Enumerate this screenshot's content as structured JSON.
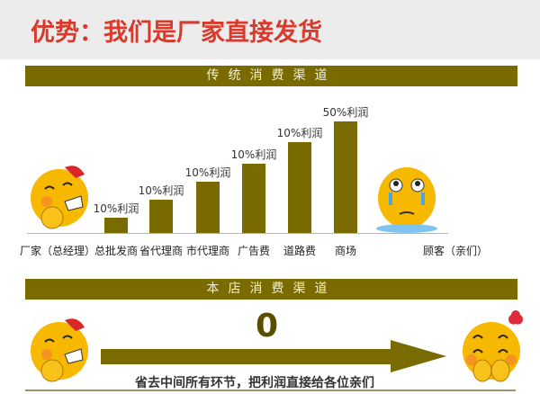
{
  "header": {
    "title": "优势：我们是厂家直接发货"
  },
  "traditional": {
    "band_title": "传统消费渠道",
    "start_label": "厂家（总经理）",
    "end_label": "顾客（亲们）"
  },
  "chart_data": {
    "type": "bar",
    "categories": [
      "总批发商",
      "省代理商",
      "市代理商",
      "广告费",
      "道路费",
      "商场"
    ],
    "labels": [
      "10%利润",
      "10%利润",
      "10%利润",
      "10%利润",
      "10%利润",
      "50%利润"
    ],
    "color": "#7a6b00"
  },
  "direct": {
    "band_title": "本店消费渠道",
    "middle_value": "0",
    "note": "省去中间所有环节，把利润直接给各位亲们"
  },
  "colors": {
    "accent": "#d93a2b",
    "olive": "#7a6b00"
  }
}
